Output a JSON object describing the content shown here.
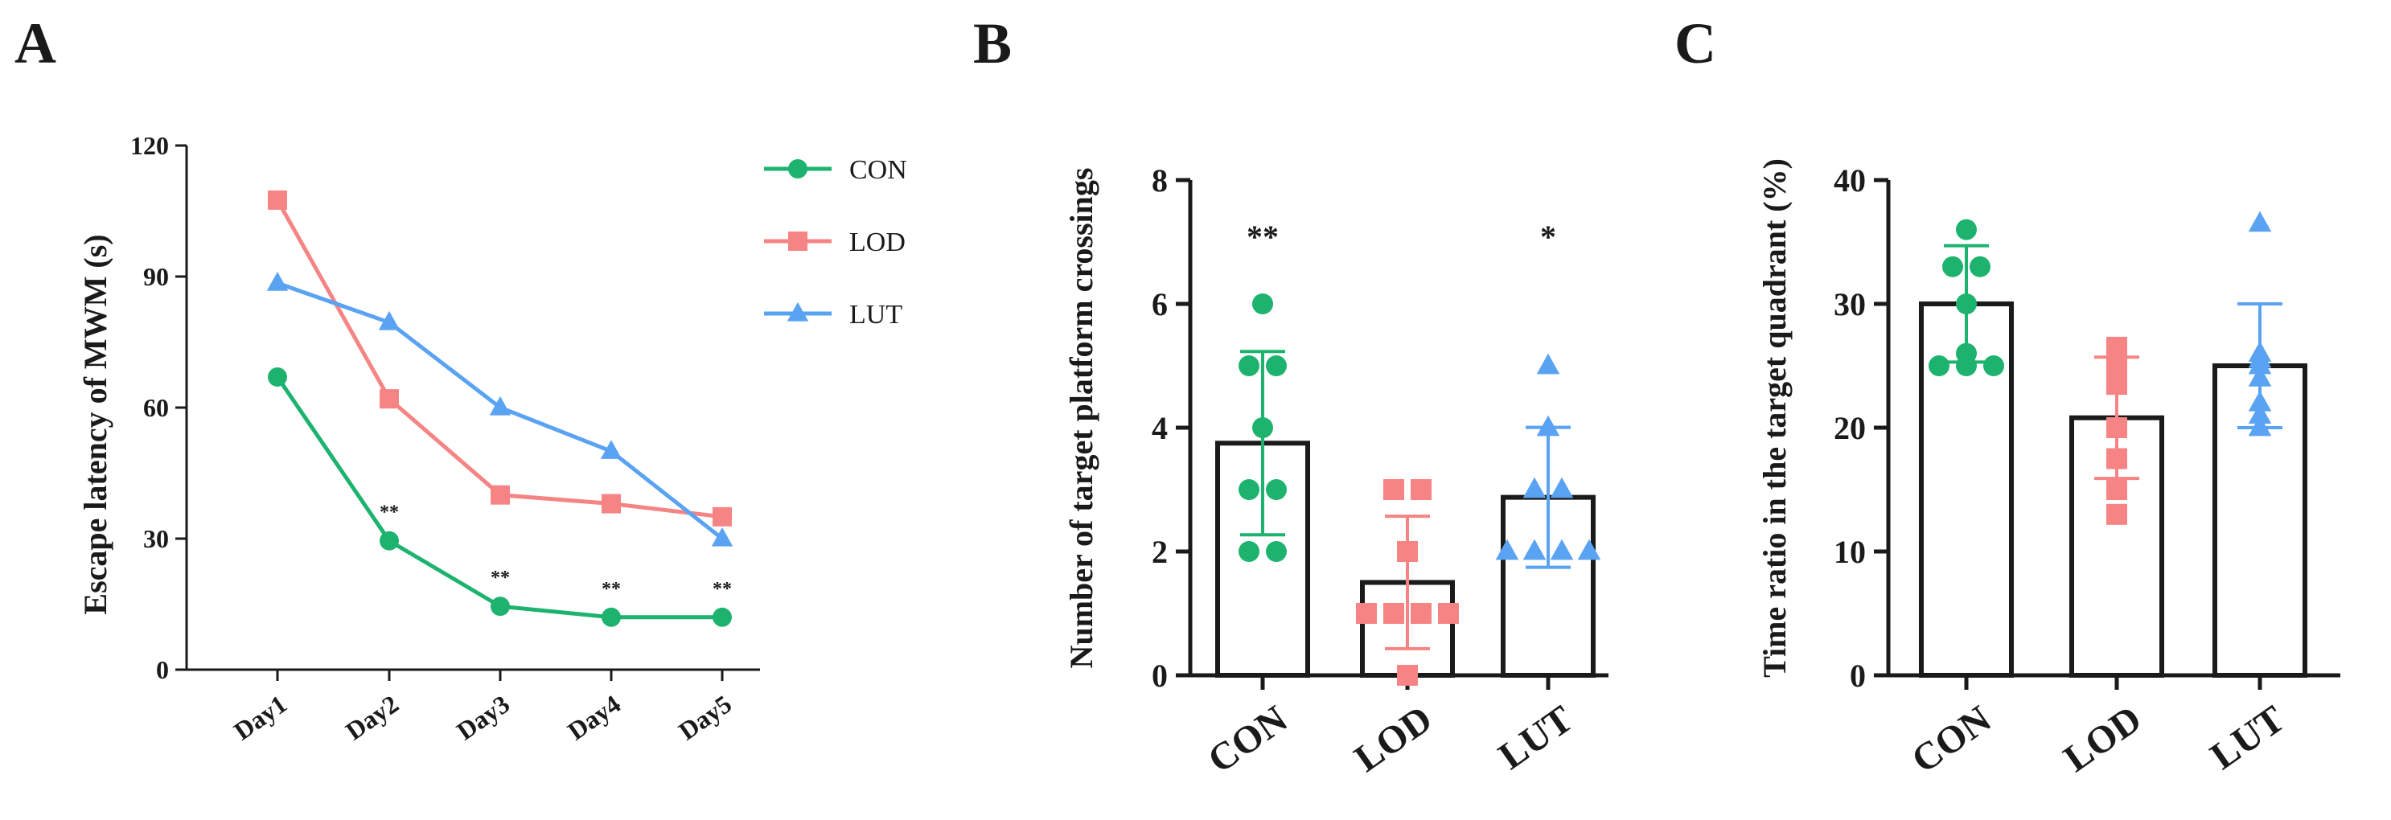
{
  "colors": {
    "CON": "#1db36f",
    "LOD": "#f68484",
    "LUT": "#5aa3f2"
  },
  "chart_data": [
    {
      "panel": "A",
      "type": "line",
      "ylabel": "Escape latency of MWM (s)",
      "xlabel": "",
      "ylim": [
        0,
        120
      ],
      "yticks": [
        "0",
        "30",
        "60",
        "90",
        "120"
      ],
      "categories": [
        "Day1",
        "Day2",
        "Day3",
        "Day4",
        "Day5"
      ],
      "series": [
        {
          "name": "CON",
          "marker": "circle",
          "values": [
            67,
            29.5,
            14.5,
            12,
            12
          ]
        },
        {
          "name": "LOD",
          "marker": "square",
          "values": [
            107.5,
            62,
            40,
            38,
            35
          ]
        },
        {
          "name": "LUT",
          "marker": "triangle",
          "values": [
            88.5,
            79.5,
            60,
            50,
            30
          ]
        }
      ],
      "annotations": [
        "",
        "**",
        "**",
        "**",
        "**"
      ],
      "legend": "top-right"
    },
    {
      "panel": "B",
      "type": "bar",
      "ylabel": "Number of target platform crossings",
      "ylim": [
        0,
        8
      ],
      "yticks": [
        "0",
        "2",
        "4",
        "6",
        "8"
      ],
      "categories": [
        "CON",
        "LOD",
        "LUT"
      ],
      "series": [
        {
          "name": "CON",
          "marker": "circle",
          "mean": 3.75,
          "sd": 1.48,
          "points": [
            6,
            5,
            5,
            4,
            3,
            3,
            2,
            2
          ],
          "sig": "**"
        },
        {
          "name": "LOD",
          "marker": "square",
          "mean": 1.5,
          "sd": 1.07,
          "points": [
            3,
            3,
            2,
            1,
            1,
            1,
            1,
            0
          ],
          "sig": ""
        },
        {
          "name": "LUT",
          "marker": "triangle",
          "mean": 2.875,
          "sd": 1.13,
          "points": [
            5,
            4,
            3,
            3,
            2,
            2,
            2,
            2
          ],
          "sig": "*"
        }
      ]
    },
    {
      "panel": "C",
      "type": "bar",
      "ylabel": "Time ratio in the target quadrant (%)",
      "ylim": [
        0,
        40
      ],
      "yticks": [
        "0",
        "10",
        "20",
        "30",
        "40"
      ],
      "categories": [
        "CON",
        "LOD",
        "LUT"
      ],
      "series": [
        {
          "name": "CON",
          "marker": "circle",
          "mean": 30,
          "sd": 4.7,
          "points": [
            36,
            33,
            33,
            30,
            26,
            25,
            25,
            25
          ]
        },
        {
          "name": "LOD",
          "marker": "square",
          "mean": 20.8,
          "sd": 4.9,
          "points": [
            26.5,
            25,
            24,
            23.5,
            20,
            17.5,
            15,
            13
          ]
        },
        {
          "name": "LUT",
          "marker": "triangle",
          "mean": 25,
          "sd": 5.0,
          "points": [
            36.5,
            26,
            25.5,
            25,
            24,
            22,
            21,
            20
          ]
        }
      ]
    }
  ]
}
